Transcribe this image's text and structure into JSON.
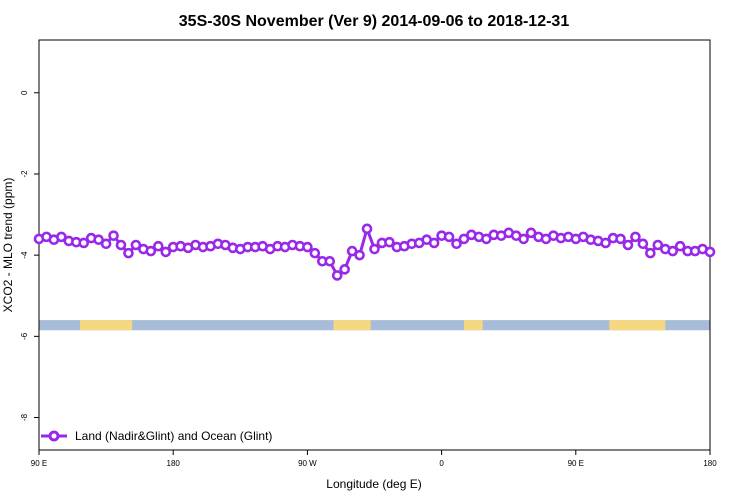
{
  "chart_data": {
    "type": "line",
    "title": "35S-30S November (Ver 9)   2014-09-06 to 2018-12-31",
    "xlabel": "Longitude (deg E)",
    "ylabel": "XCO2 - MLO trend (ppm)",
    "xlim": [
      90,
      450
    ],
    "ylim": [
      -8.8,
      1.3
    ],
    "x_ticks": [
      {
        "value": 90,
        "label": "90 E"
      },
      {
        "value": 162,
        "label": "180"
      },
      {
        "value": 234,
        "label": "90 W"
      },
      {
        "value": 306,
        "label": "0"
      },
      {
        "value": 378,
        "label": "90 E"
      },
      {
        "value": 450,
        "label": "180"
      }
    ],
    "y_ticks": [
      {
        "value": 0,
        "label": "0"
      },
      {
        "value": -2,
        "label": "-2"
      },
      {
        "value": -4,
        "label": "-4"
      },
      {
        "value": -6,
        "label": "-6"
      },
      {
        "value": -8,
        "label": "-8"
      }
    ],
    "grid": false,
    "legend_position": "bottom-left",
    "series": [
      {
        "name": "Land (Nadir&Glint) and Ocean (Glint)",
        "color": "#9a28e8",
        "x": [
          90,
          94,
          98,
          102,
          106,
          110,
          114,
          118,
          122,
          126,
          130,
          134,
          138,
          142,
          146,
          150,
          154,
          158,
          162,
          166,
          170,
          174,
          178,
          182,
          186,
          190,
          194,
          198,
          202,
          206,
          210,
          214,
          218,
          222,
          226,
          230,
          234,
          238,
          242,
          246,
          250,
          254,
          258,
          262,
          266,
          270,
          274,
          278,
          282,
          286,
          290,
          294,
          298,
          302,
          306,
          310,
          314,
          318,
          322,
          326,
          330,
          334,
          338,
          342,
          346,
          350,
          354,
          358,
          362,
          366,
          370,
          374,
          378,
          382,
          386,
          390,
          394,
          398,
          402,
          406,
          410,
          414,
          418,
          422,
          426,
          430,
          434,
          438,
          442,
          446,
          450
        ],
        "y": [
          -3.6,
          -3.55,
          -3.62,
          -3.55,
          -3.65,
          -3.68,
          -3.7,
          -3.58,
          -3.62,
          -3.72,
          -3.52,
          -3.75,
          -3.95,
          -3.75,
          -3.85,
          -3.9,
          -3.78,
          -3.92,
          -3.8,
          -3.78,
          -3.82,
          -3.75,
          -3.8,
          -3.78,
          -3.72,
          -3.75,
          -3.82,
          -3.85,
          -3.8,
          -3.8,
          -3.78,
          -3.85,
          -3.78,
          -3.8,
          -3.75,
          -3.78,
          -3.8,
          -3.95,
          -4.15,
          -4.15,
          -4.5,
          -4.35,
          -3.9,
          -4.0,
          -3.35,
          -3.85,
          -3.7,
          -3.68,
          -3.8,
          -3.78,
          -3.72,
          -3.7,
          -3.62,
          -3.7,
          -3.52,
          -3.55,
          -3.72,
          -3.6,
          -3.5,
          -3.55,
          -3.6,
          -3.5,
          -3.52,
          -3.45,
          -3.52,
          -3.6,
          -3.45,
          -3.55,
          -3.6,
          -3.52,
          -3.58,
          -3.55,
          -3.6,
          -3.55,
          -3.62,
          -3.65,
          -3.7,
          -3.58,
          -3.6,
          -3.75,
          -3.55,
          -3.72,
          -3.95,
          -3.75,
          -3.85,
          -3.9,
          -3.78,
          -3.9,
          -3.9,
          -3.85,
          -3.92
        ]
      }
    ],
    "map_strip": {
      "y_top": -5.6,
      "y_bottom": -5.85,
      "ocean_color": "#a7bcd8",
      "land_color": "#f6d880",
      "land_x_ranges": [
        [
          112,
          140
        ],
        [
          248,
          268
        ],
        [
          318,
          328
        ],
        [
          396,
          426
        ]
      ]
    }
  }
}
